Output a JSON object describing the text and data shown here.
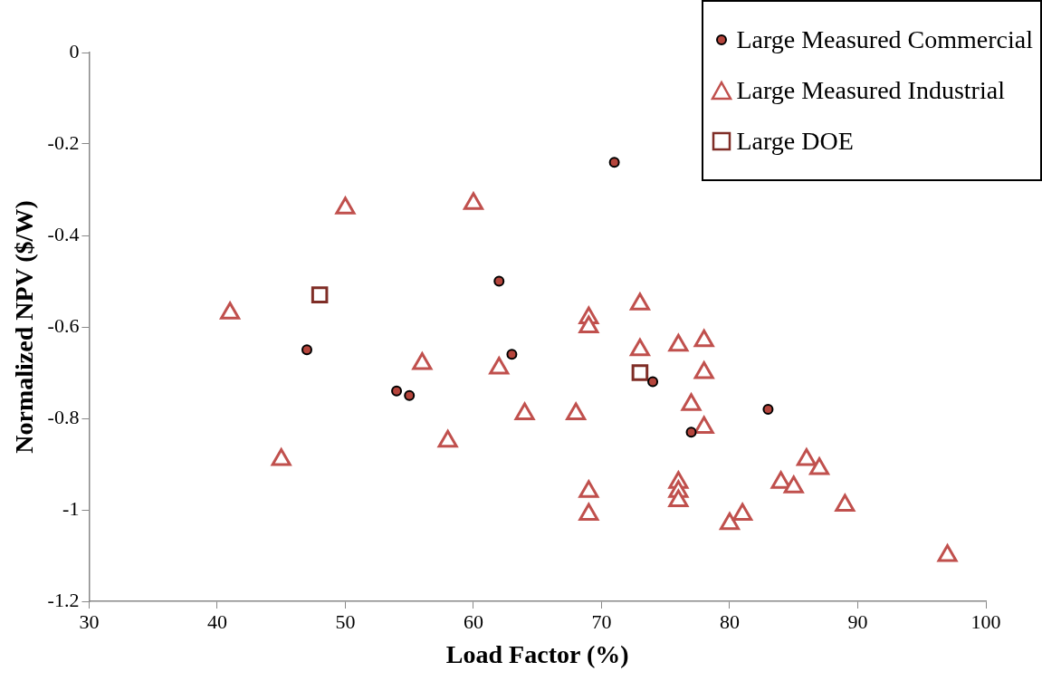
{
  "chart_data": {
    "type": "scatter",
    "xlabel": "Load Factor (%)",
    "ylabel": "Normalized NPV ($/W)",
    "xlim": [
      30,
      100
    ],
    "xticks": [
      30,
      40,
      50,
      60,
      70,
      80,
      90,
      100
    ],
    "ylim": [
      -1.2,
      0
    ],
    "yticks": [
      -1.2,
      -1,
      -0.8,
      -0.6,
      -0.4,
      -0.2,
      0
    ],
    "grid": false,
    "legend": "top right",
    "series": [
      {
        "name": "Large Measured Commercial",
        "color": "#b5453c",
        "marker": "circle",
        "x": [
          47,
          54,
          55,
          62,
          63,
          71,
          74,
          77,
          83
        ],
        "values": [
          -0.65,
          -0.74,
          -0.75,
          -0.5,
          -0.66,
          -0.24,
          -0.72,
          -0.83,
          -0.78
        ]
      },
      {
        "name": "Large Measured Industrial",
        "color": "#c0504d",
        "marker": "triangle",
        "x": [
          41,
          45,
          50,
          56,
          58,
          60,
          62,
          64,
          68,
          69,
          69,
          69,
          69,
          73,
          73,
          76,
          76,
          76,
          76,
          77,
          78,
          78,
          78,
          80,
          81,
          84,
          85,
          86,
          87,
          89,
          97
        ],
        "values": [
          -0.57,
          -0.89,
          -0.34,
          -0.68,
          -0.85,
          -0.33,
          -0.69,
          -0.79,
          -0.79,
          -0.58,
          -0.6,
          -0.96,
          -1.01,
          -0.55,
          -0.65,
          -0.64,
          -0.94,
          -0.96,
          -0.98,
          -0.77,
          -0.63,
          -0.7,
          -0.82,
          -1.03,
          -1.01,
          -0.94,
          -0.95,
          -0.89,
          -0.91,
          -0.99,
          -1.1
        ]
      },
      {
        "name": "Large DOE",
        "color": "#7f2d26",
        "marker": "square",
        "x": [
          48,
          73
        ],
        "values": [
          -0.53,
          -0.7
        ]
      }
    ]
  }
}
